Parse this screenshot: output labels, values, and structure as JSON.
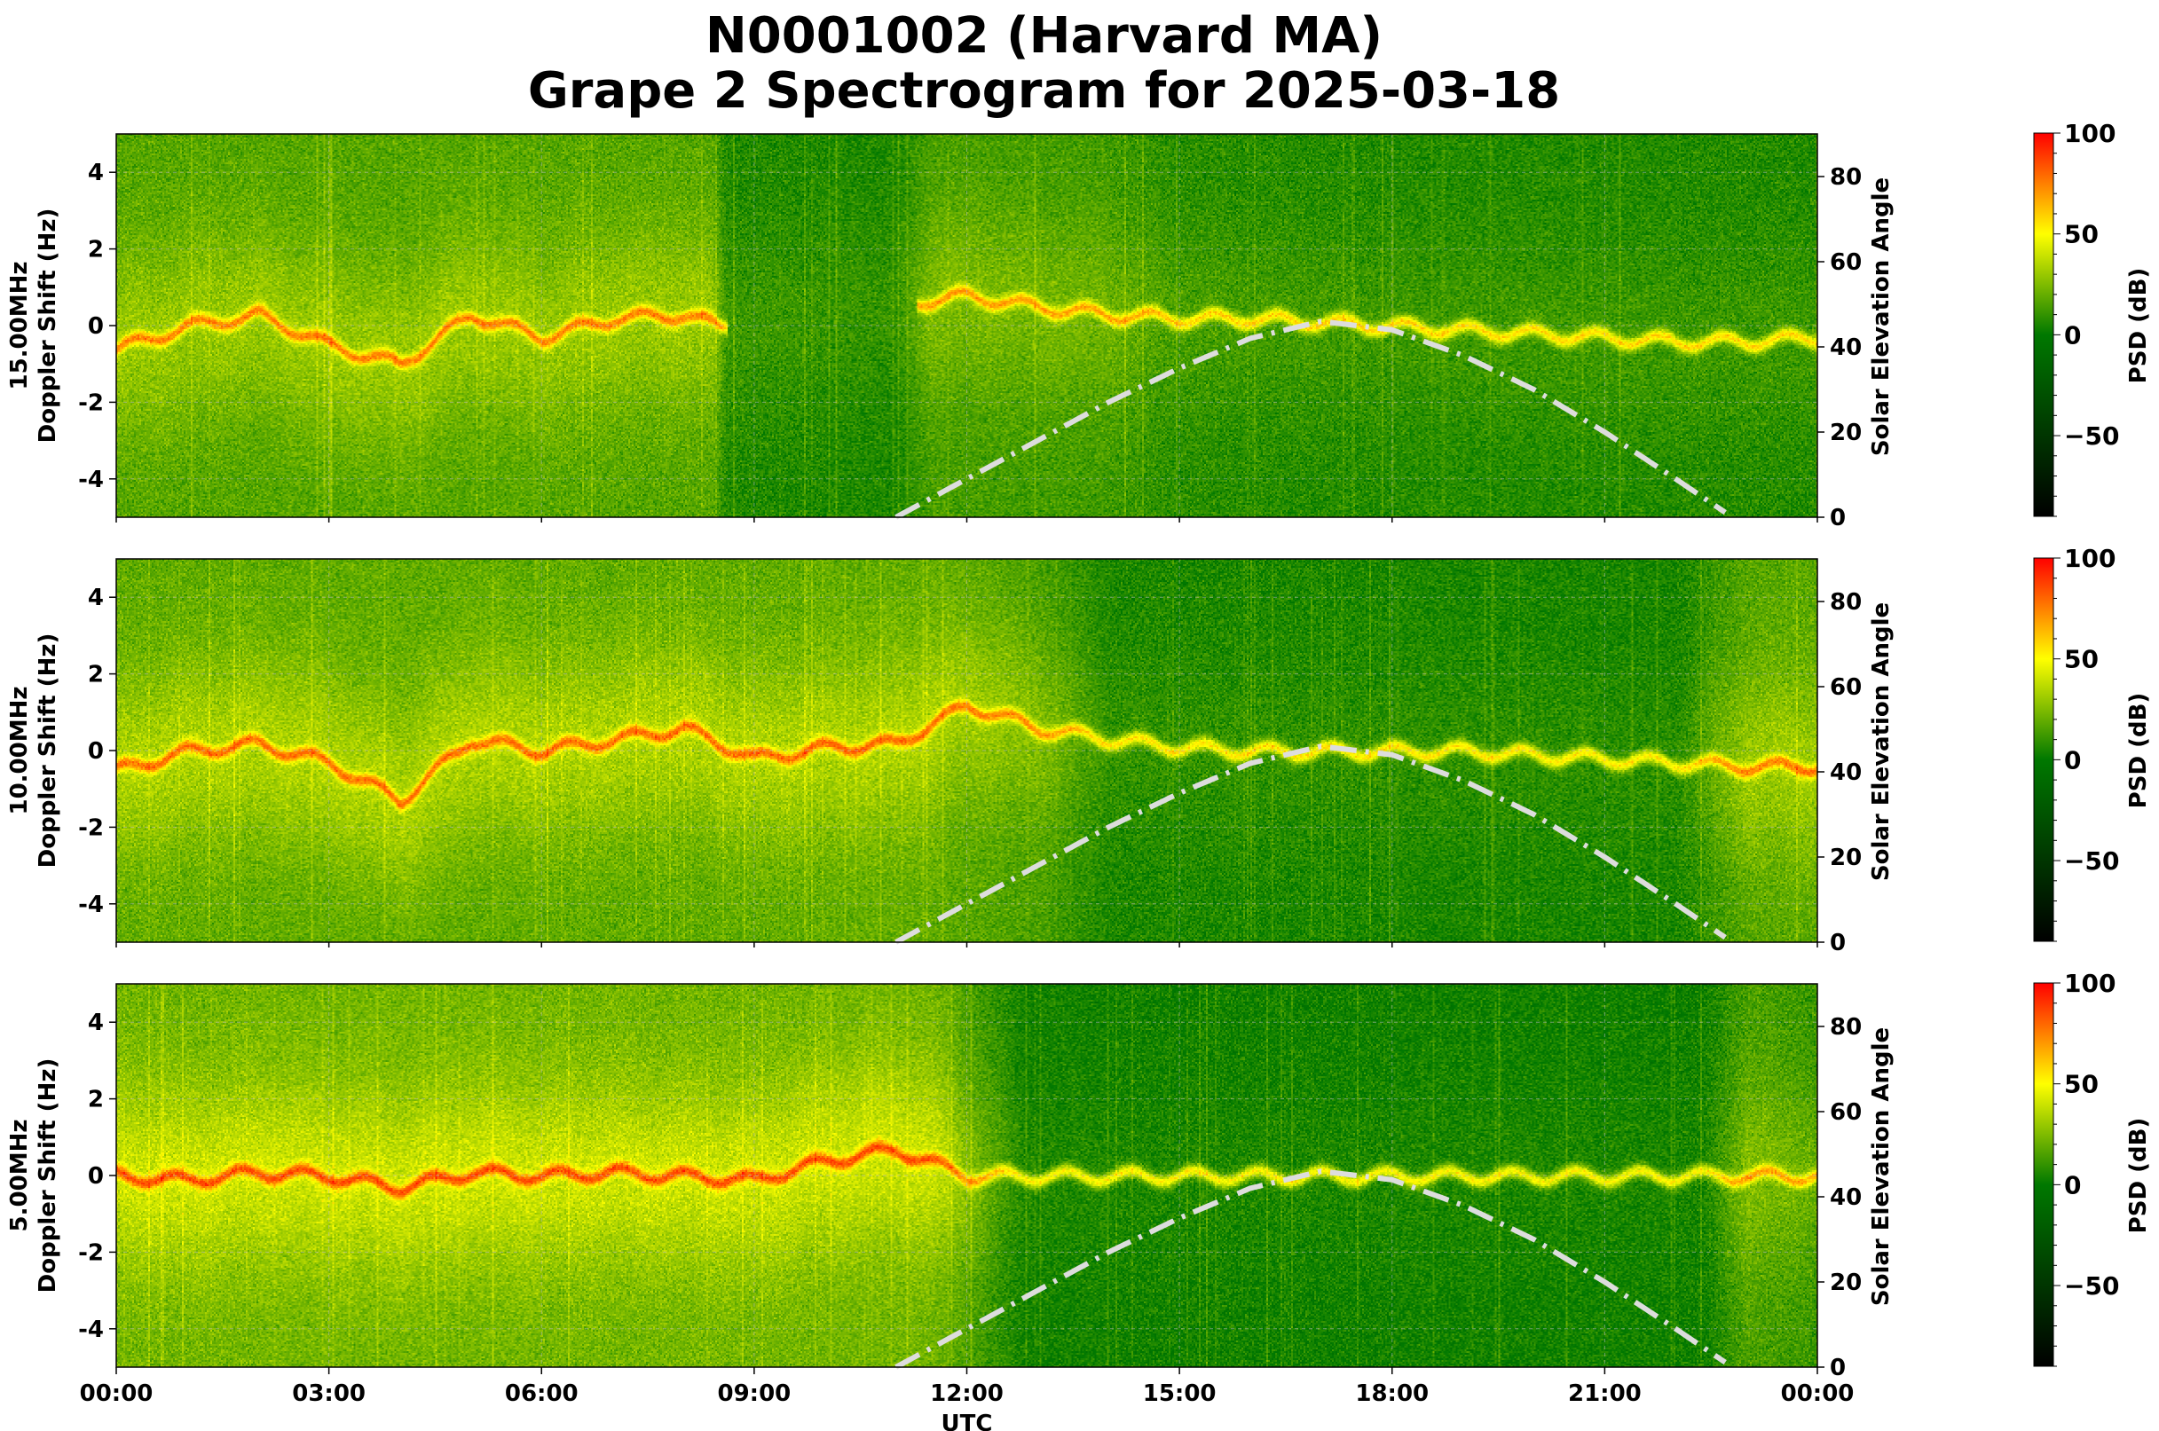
{
  "title_line1": "N0001002 (Harvard MA)",
  "title_line2": "Grape 2 Spectrogram for 2025-03-18",
  "chart_data": [
    {
      "type": "heatmap",
      "panel_label": "15.00MHz",
      "ylabel": "Doppler Shift (Hz)",
      "ylabel_right": "Solar Elevation Angle",
      "ylim": [
        -5,
        5
      ],
      "ylim_right": [
        0,
        90
      ],
      "yticks": [
        "-4",
        "-2",
        "0",
        "2",
        "4"
      ],
      "yticks_right": [
        "0",
        "20",
        "40",
        "60",
        "80"
      ],
      "xlim": [
        "00:00",
        "24:00"
      ],
      "grid": true,
      "colorbar": {
        "label": "PSD (dB)",
        "range": [
          -90,
          100
        ],
        "ticks": [
          "−50",
          "0",
          "50",
          "100"
        ]
      },
      "doppler_trace_hz": {
        "hours": [
          0,
          1,
          2,
          3,
          4,
          5,
          6,
          7,
          8,
          8.5,
          12,
          13,
          14,
          15,
          16,
          17,
          18,
          19,
          20,
          21,
          22,
          23,
          24
        ],
        "values": [
          -0.6,
          0,
          0.3,
          -0.5,
          -1,
          0.3,
          -0.3,
          0.2,
          0.3,
          0,
          0.8,
          0.5,
          0.3,
          0.2,
          0.2,
          0.1,
          0,
          -0.1,
          -0.2,
          -0.3,
          -0.4,
          -0.4,
          -0.3
        ]
      }
    },
    {
      "type": "heatmap",
      "panel_label": "10.00MHz",
      "ylabel": "Doppler Shift (Hz)",
      "ylabel_right": "Solar Elevation Angle",
      "ylim": [
        -5,
        5
      ],
      "ylim_right": [
        0,
        90
      ],
      "yticks": [
        "-4",
        "-2",
        "0",
        "2",
        "4"
      ],
      "yticks_right": [
        "0",
        "20",
        "40",
        "60",
        "80"
      ],
      "xlim": [
        "00:00",
        "24:00"
      ],
      "grid": true,
      "colorbar": {
        "label": "PSD (dB)",
        "range": [
          -90,
          100
        ],
        "ticks": [
          "−50",
          "0",
          "50",
          "100"
        ]
      },
      "doppler_trace_hz": {
        "hours": [
          0,
          1,
          2,
          3,
          4,
          5,
          6,
          7,
          8,
          9,
          10,
          11,
          12,
          13,
          14,
          15,
          16,
          17,
          18,
          19,
          20,
          21,
          22,
          23,
          24
        ],
        "values": [
          -0.5,
          0,
          0.2,
          -0.3,
          -1.3,
          0.3,
          0,
          0.3,
          0.6,
          -0.2,
          0.1,
          0.2,
          1.2,
          0.6,
          0.3,
          0.1,
          0,
          0,
          0,
          0,
          -0.1,
          -0.2,
          -0.3,
          -0.4,
          -0.4
        ]
      }
    },
    {
      "type": "heatmap",
      "panel_label": "5.00MHz",
      "ylabel": "Doppler Shift (Hz)",
      "ylabel_right": "Solar Elevation Angle",
      "ylim": [
        -5,
        5
      ],
      "ylim_right": [
        0,
        90
      ],
      "yticks": [
        "-4",
        "-2",
        "0",
        "2",
        "4"
      ],
      "yticks_right": [
        "0",
        "20",
        "40",
        "60",
        "80"
      ],
      "xlim": [
        "00:00",
        "24:00"
      ],
      "xlabel": "UTC",
      "xticks": [
        "00:00",
        "03:00",
        "06:00",
        "09:00",
        "12:00",
        "15:00",
        "18:00",
        "21:00",
        "00:00"
      ],
      "grid": true,
      "colorbar": {
        "label": "PSD (dB)",
        "range": [
          -90,
          100
        ],
        "ticks": [
          "−50",
          "0",
          "50",
          "100"
        ]
      },
      "doppler_trace_hz": {
        "hours": [
          0,
          1,
          2,
          3,
          4,
          5,
          6,
          7,
          8,
          9,
          10,
          11,
          12,
          13,
          24
        ],
        "values": [
          0,
          -0.1,
          0.1,
          0,
          -0.3,
          0.1,
          0,
          0.1,
          0,
          -0.1,
          0.4,
          0.7,
          0,
          0,
          0
        ]
      }
    }
  ],
  "solar_elevation": {
    "hours": [
      11,
      12,
      13,
      14,
      15,
      16,
      17,
      18,
      19,
      20,
      21,
      22,
      22.8
    ],
    "degrees": [
      0,
      9,
      18,
      27,
      35,
      42,
      46,
      44,
      38,
      30,
      20,
      9,
      0
    ],
    "color": "#dddddd",
    "style": "dash-dot"
  },
  "colormap": {
    "low": "#000000",
    "mid": "#008000",
    "yellow": "#ffff00",
    "high": "#ff0000"
  }
}
